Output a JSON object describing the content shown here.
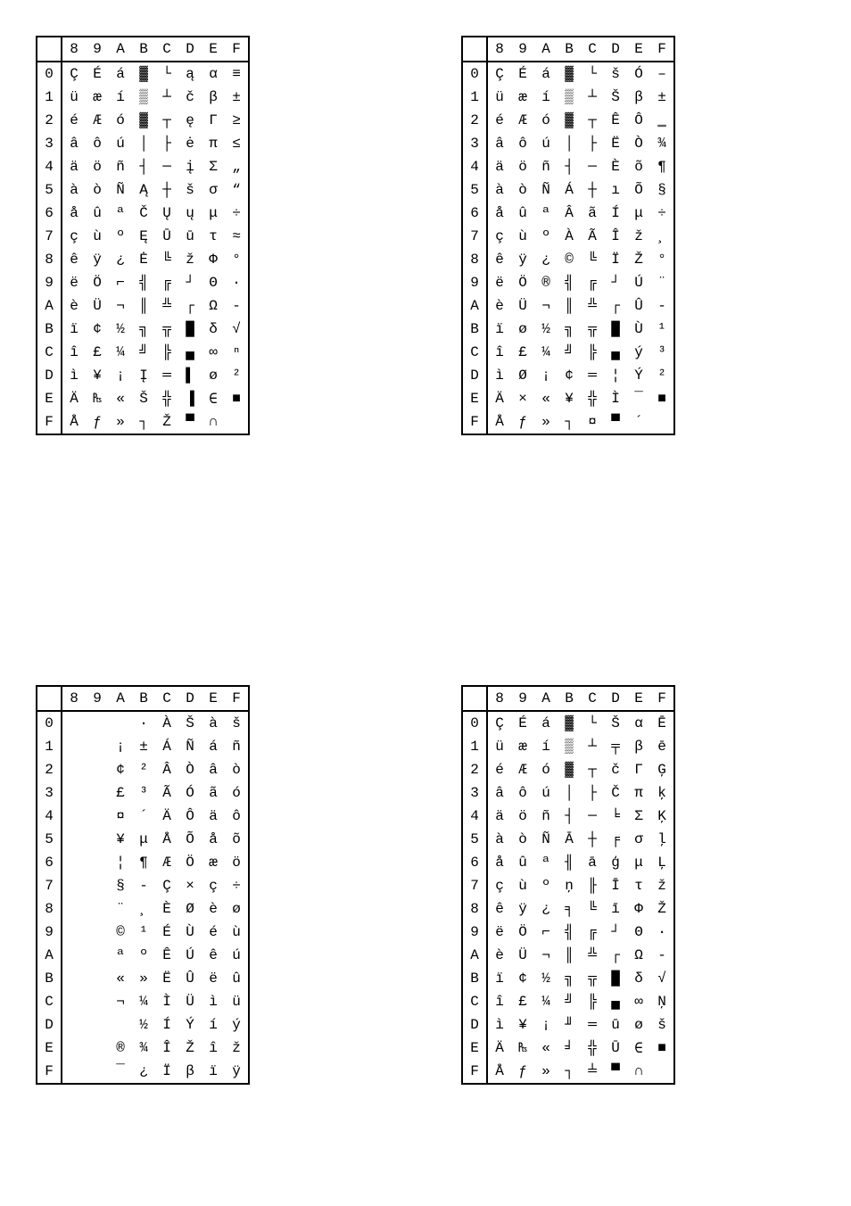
{
  "tables": {
    "topLeft": {
      "colHeaders": [
        "8",
        "9",
        "A",
        "B",
        "C",
        "D",
        "E",
        "F"
      ],
      "rowHeaders": [
        "0",
        "1",
        "2",
        "3",
        "4",
        "5",
        "6",
        "7",
        "8",
        "9",
        "A",
        "B",
        "C",
        "D",
        "E",
        "F"
      ],
      "cells": [
        [
          "Ç",
          "É",
          "á",
          "▓",
          "└",
          "ą",
          "α",
          "≡"
        ],
        [
          "ü",
          "æ",
          "í",
          "▒",
          "┴",
          "č",
          "β",
          "±"
        ],
        [
          "é",
          "Æ",
          "ó",
          "▓",
          "┬",
          "ę",
          "Γ",
          "≥"
        ],
        [
          "â",
          "ô",
          "ú",
          "│",
          "├",
          "ė",
          "π",
          "≤"
        ],
        [
          "ä",
          "ö",
          "ñ",
          "┤",
          "─",
          "į",
          "Σ",
          "„"
        ],
        [
          "à",
          "ò",
          "Ñ",
          "Ą",
          "┼",
          "š",
          "σ",
          "“"
        ],
        [
          "å",
          "û",
          "ª",
          "Č",
          "Ų",
          "ų",
          "μ",
          "÷"
        ],
        [
          "ç",
          "ù",
          "º",
          "Ę",
          "Ū",
          "ū",
          "τ",
          "≈"
        ],
        [
          "ê",
          "ÿ",
          "¿",
          "Ė",
          "╚",
          "ž",
          "Φ",
          "°"
        ],
        [
          "ë",
          "Ö",
          "⌐",
          "╣",
          "╔",
          "┘",
          "Θ",
          "·"
        ],
        [
          "è",
          "Ü",
          "¬",
          "║",
          "╩",
          "┌",
          "Ω",
          "-"
        ],
        [
          "ï",
          "¢",
          "½",
          "╗",
          "╦",
          "█",
          "δ",
          "√"
        ],
        [
          "î",
          "£",
          "¼",
          "╝",
          "╠",
          "▄",
          "∞",
          "ⁿ"
        ],
        [
          "ì",
          "¥",
          "¡",
          "Į",
          "═",
          "▌",
          "ø",
          "²"
        ],
        [
          "Ä",
          "₧",
          "«",
          "Š",
          "╬",
          "▐",
          "∈",
          "■"
        ],
        [
          "Å",
          "ƒ",
          "»",
          "┐",
          "Ž",
          "▀",
          "∩",
          ""
        ]
      ]
    },
    "topRight": {
      "colHeaders": [
        "8",
        "9",
        "A",
        "B",
        "C",
        "D",
        "E",
        "F"
      ],
      "rowHeaders": [
        "0",
        "1",
        "2",
        "3",
        "4",
        "5",
        "6",
        "7",
        "8",
        "9",
        "A",
        "B",
        "C",
        "D",
        "E",
        "F"
      ],
      "cells": [
        [
          "Ç",
          "É",
          "á",
          "▓",
          "└",
          "š",
          "Ó",
          "–"
        ],
        [
          "ü",
          "æ",
          "í",
          "▒",
          "┴",
          "Š",
          "β",
          "±"
        ],
        [
          "é",
          "Æ",
          "ó",
          "▓",
          "┬",
          "Ê",
          "Ô",
          "‗"
        ],
        [
          "â",
          "ô",
          "ú",
          "│",
          "├",
          "Ë",
          "Ò",
          "¾"
        ],
        [
          "ä",
          "ö",
          "ñ",
          "┤",
          "─",
          "È",
          "õ",
          "¶"
        ],
        [
          "à",
          "ò",
          "Ñ",
          "Á",
          "┼",
          "ı",
          "Õ",
          "§"
        ],
        [
          "å",
          "û",
          "ª",
          "Â",
          "ã",
          "Í",
          "μ",
          "÷"
        ],
        [
          "ç",
          "ù",
          "º",
          "À",
          "Ã",
          "Î",
          "ž",
          "¸"
        ],
        [
          "ê",
          "ÿ",
          "¿",
          "©",
          "╚",
          "Ï",
          "Ž",
          "°"
        ],
        [
          "ë",
          "Ö",
          "®",
          "╣",
          "╔",
          "┘",
          "Ú",
          "¨"
        ],
        [
          "è",
          "Ü",
          "¬",
          "║",
          "╩",
          "┌",
          "Û",
          "-"
        ],
        [
          "ï",
          "ø",
          "½",
          "╗",
          "╦",
          "█",
          "Ù",
          "¹"
        ],
        [
          "î",
          "£",
          "¼",
          "╝",
          "╠",
          "▄",
          "ý",
          "³"
        ],
        [
          "ì",
          "Ø",
          "¡",
          "¢",
          "═",
          "¦",
          "Ý",
          "²"
        ],
        [
          "Ä",
          "×",
          "«",
          "¥",
          "╬",
          "Ì",
          "¯",
          "■"
        ],
        [
          "Å",
          "ƒ",
          "»",
          "┐",
          "¤",
          "▀",
          "´",
          ""
        ]
      ]
    },
    "bottomLeft": {
      "colHeaders": [
        "8",
        "9",
        "A",
        "B",
        "C",
        "D",
        "E",
        "F"
      ],
      "rowHeaders": [
        "0",
        "1",
        "2",
        "3",
        "4",
        "5",
        "6",
        "7",
        "8",
        "9",
        "A",
        "B",
        "C",
        "D",
        "E",
        "F"
      ],
      "cells": [
        [
          "",
          "",
          "",
          "·",
          "À",
          "Š",
          "à",
          "š"
        ],
        [
          "",
          "",
          "¡",
          "±",
          "Á",
          "Ñ",
          "á",
          "ñ"
        ],
        [
          "",
          "",
          "¢",
          "²",
          "Â",
          "Ò",
          "â",
          "ò"
        ],
        [
          "",
          "",
          "£",
          "³",
          "Ã",
          "Ó",
          "ã",
          "ó"
        ],
        [
          "",
          "",
          "¤",
          "´",
          "Ä",
          "Ô",
          "ä",
          "ô"
        ],
        [
          "",
          "",
          "¥",
          "μ",
          "Å",
          "Õ",
          "å",
          "õ"
        ],
        [
          "",
          "",
          "¦",
          "¶",
          "Æ",
          "Ö",
          "æ",
          "ö"
        ],
        [
          "",
          "",
          "§",
          "-",
          "Ç",
          "×",
          "ç",
          "÷"
        ],
        [
          "",
          "",
          "¨",
          "¸",
          "È",
          "Ø",
          "è",
          "ø"
        ],
        [
          "",
          "",
          "©",
          "¹",
          "É",
          "Ù",
          "é",
          "ù"
        ],
        [
          "",
          "",
          "ª",
          "º",
          "Ê",
          "Ú",
          "ê",
          "ú"
        ],
        [
          "",
          "",
          "«",
          "»",
          "Ë",
          "Û",
          "ë",
          "û"
        ],
        [
          "",
          "",
          "¬",
          "¼",
          "Ì",
          "Ü",
          "ì",
          "ü"
        ],
        [
          "",
          "",
          "",
          "½",
          "Í",
          "Ý",
          "í",
          "ý"
        ],
        [
          "",
          "",
          "®",
          "¾",
          "Î",
          "Ž",
          "î",
          "ž"
        ],
        [
          "",
          "",
          "¯",
          "¿",
          "Ï",
          "β",
          "ï",
          "ÿ"
        ]
      ]
    },
    "bottomRight": {
      "colHeaders": [
        "8",
        "9",
        "A",
        "B",
        "C",
        "D",
        "E",
        "F"
      ],
      "rowHeaders": [
        "0",
        "1",
        "2",
        "3",
        "4",
        "5",
        "6",
        "7",
        "8",
        "9",
        "A",
        "B",
        "C",
        "D",
        "E",
        "F"
      ],
      "cells": [
        [
          "Ç",
          "É",
          "á",
          "▓",
          "└",
          "Š",
          "α",
          "Ē"
        ],
        [
          "ü",
          "æ",
          "í",
          "▒",
          "┴",
          "╤",
          "β",
          "ē"
        ],
        [
          "é",
          "Æ",
          "ó",
          "▓",
          "┬",
          "č",
          "Γ",
          "Ģ"
        ],
        [
          "â",
          "ô",
          "ú",
          "│",
          "├",
          "Č",
          "π",
          "ķ"
        ],
        [
          "ä",
          "ö",
          "ñ",
          "┤",
          "─",
          "╘",
          "Σ",
          "Ķ"
        ],
        [
          "à",
          "ò",
          "Ñ",
          "Ā",
          "┼",
          "╒",
          "σ",
          "ļ"
        ],
        [
          "å",
          "û",
          "ª",
          "╢",
          "ā",
          "ģ",
          "μ",
          "Ļ"
        ],
        [
          "ç",
          "ù",
          "º",
          "ņ",
          "╟",
          "Ī",
          "τ",
          "ž"
        ],
        [
          "ê",
          "ÿ",
          "¿",
          "╕",
          "╚",
          "ī",
          "Φ",
          "Ž"
        ],
        [
          "ë",
          "Ö",
          "⌐",
          "╣",
          "╔",
          "┘",
          "Θ",
          "·"
        ],
        [
          "è",
          "Ü",
          "¬",
          "║",
          "╩",
          "┌",
          "Ω",
          "-"
        ],
        [
          "ï",
          "¢",
          "½",
          "╗",
          "╦",
          "█",
          "δ",
          "√"
        ],
        [
          "î",
          "£",
          "¼",
          "╝",
          "╠",
          "▄",
          "∞",
          "Ņ"
        ],
        [
          "ì",
          "¥",
          "¡",
          "╜",
          "═",
          "ū",
          "ø",
          "š"
        ],
        [
          "Ä",
          "₧",
          "«",
          "╛",
          "╬",
          "Ū",
          "∈",
          "■"
        ],
        [
          "Å",
          "ƒ",
          "»",
          "┐",
          "╧",
          "▀",
          "∩",
          ""
        ]
      ]
    }
  }
}
